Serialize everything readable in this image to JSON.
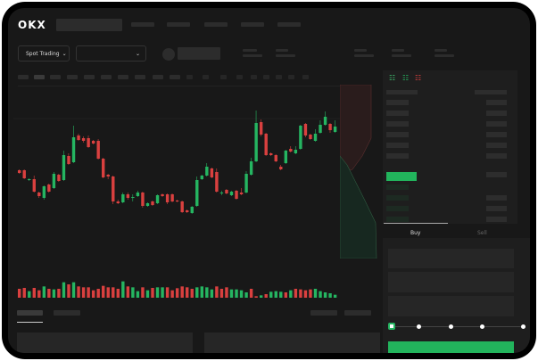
{
  "header": {
    "logo": "OKX"
  },
  "toolbar": {
    "market_selector": "Spot Trading",
    "market_selector_icon": "chevron-down-icon",
    "pair_selector_icon": "chevron-down-icon"
  },
  "trade_panel": {
    "tabs": [
      {
        "label": "Buy",
        "active": true
      },
      {
        "label": "Sell",
        "active": false
      }
    ],
    "slider_value": 0,
    "submit_color": "#22b45c"
  },
  "colors": {
    "up": "#25b561",
    "down": "#d9403f",
    "background": "#181818"
  },
  "chart_data": {
    "type": "candlestick",
    "candles": [
      [
        68,
        65,
        69,
        64
      ],
      [
        68,
        59,
        69,
        58
      ],
      [
        57,
        58,
        59,
        56
      ],
      [
        58,
        44,
        62,
        43
      ],
      [
        43,
        39,
        44,
        37
      ],
      [
        37,
        50,
        51,
        35
      ],
      [
        52,
        44,
        53,
        43
      ],
      [
        48,
        64,
        66,
        47
      ],
      [
        63,
        56,
        64,
        55
      ],
      [
        57,
        85,
        90,
        56
      ],
      [
        84,
        75,
        87,
        74
      ],
      [
        77,
        105,
        118,
        76
      ],
      [
        107,
        102,
        109,
        101
      ],
      [
        104,
        101,
        106,
        99
      ],
      [
        104,
        94,
        107,
        93
      ],
      [
        101,
        98,
        102,
        97
      ],
      [
        101,
        81,
        103,
        80
      ],
      [
        81,
        60,
        82,
        59
      ],
      [
        63,
        61,
        64,
        58
      ],
      [
        61,
        33,
        62,
        30
      ],
      [
        33,
        31,
        35,
        30
      ],
      [
        32,
        41,
        43,
        31
      ],
      [
        41,
        37,
        43,
        35
      ],
      [
        37,
        38,
        41,
        33
      ],
      [
        39,
        43,
        45,
        38
      ],
      [
        43,
        28,
        44,
        26
      ],
      [
        28,
        31,
        32,
        27
      ],
      [
        33,
        29,
        34,
        28
      ],
      [
        31,
        40,
        41,
        30
      ],
      [
        41,
        39,
        42,
        38
      ],
      [
        41,
        32,
        42,
        30
      ],
      [
        41,
        33,
        42,
        32
      ],
      [
        34,
        33,
        35,
        32
      ],
      [
        33,
        21,
        34,
        20
      ],
      [
        23,
        21,
        24,
        20
      ],
      [
        20,
        27,
        28,
        19
      ],
      [
        28,
        57,
        61,
        27
      ],
      [
        58,
        62,
        63,
        57
      ],
      [
        62,
        72,
        76,
        61
      ],
      [
        70,
        60,
        71,
        59
      ],
      [
        66,
        44,
        70,
        43
      ],
      [
        42,
        43,
        45,
        40
      ],
      [
        46,
        42,
        47,
        41
      ],
      [
        40,
        44,
        45,
        39
      ],
      [
        45,
        36,
        46,
        35
      ],
      [
        43,
        41,
        48,
        40
      ],
      [
        43,
        64,
        67,
        42
      ],
      [
        63,
        78,
        82,
        62
      ],
      [
        78,
        121,
        135,
        77
      ],
      [
        122,
        108,
        125,
        106
      ],
      [
        109,
        85,
        110,
        84
      ],
      [
        87,
        85,
        88,
        84
      ],
      [
        85,
        78,
        86,
        77
      ],
      [
        72,
        69,
        74,
        68
      ],
      [
        76,
        90,
        91,
        75
      ],
      [
        92,
        89,
        95,
        88
      ],
      [
        87,
        91,
        95,
        86
      ],
      [
        92,
        118,
        119,
        91
      ],
      [
        120,
        107,
        121,
        105
      ],
      [
        108,
        103,
        109,
        102
      ],
      [
        101,
        109,
        114,
        100
      ],
      [
        110,
        119,
        124,
        109
      ],
      [
        119,
        128,
        134,
        118
      ],
      [
        120,
        113,
        121,
        110
      ],
      [
        111,
        117,
        124,
        110
      ]
    ],
    "candle_format": [
      "open",
      "close",
      "high",
      "low"
    ],
    "volume": [
      30,
      33,
      22,
      33,
      25,
      38,
      30,
      28,
      30,
      52,
      45,
      52,
      38,
      35,
      35,
      25,
      30,
      40,
      35,
      35,
      30,
      55,
      38,
      35,
      22,
      35,
      25,
      33,
      35,
      35,
      35,
      25,
      32,
      38,
      35,
      30,
      35,
      38,
      35,
      28,
      38,
      30,
      35,
      28,
      28,
      25,
      18,
      30,
      5,
      8,
      12,
      20,
      22,
      20,
      18,
      25,
      30,
      28,
      25,
      28,
      30,
      22,
      18,
      15,
      10
    ],
    "volume_up": [
      0,
      0,
      1,
      0,
      0,
      1,
      0,
      1,
      0,
      1,
      0,
      1,
      0,
      0,
      0,
      0,
      0,
      0,
      0,
      0,
      0,
      1,
      0,
      1,
      1,
      0,
      1,
      0,
      1,
      1,
      0,
      0,
      0,
      0,
      0,
      0,
      1,
      1,
      1,
      1,
      0,
      0,
      0,
      1,
      1,
      1,
      1,
      0,
      0,
      1,
      0,
      1,
      1,
      1,
      0,
      1,
      0,
      0,
      0,
      0,
      1,
      1,
      1,
      1,
      1
    ]
  }
}
